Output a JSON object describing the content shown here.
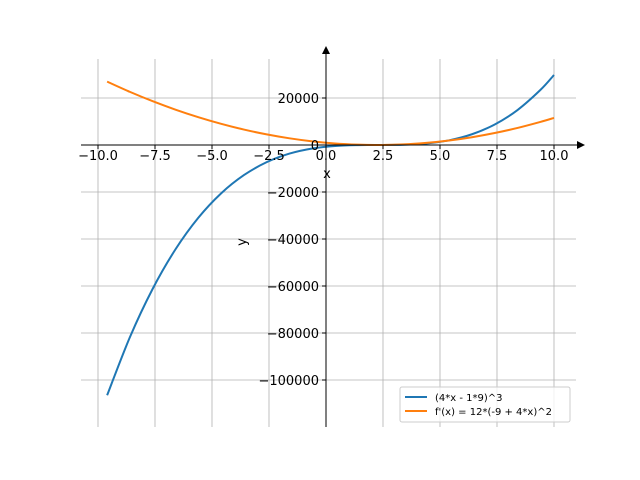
{
  "chart_data": {
    "type": "line",
    "title": "",
    "xlabel": "x",
    "ylabel": "y",
    "xlim": [
      -10.75,
      11
    ],
    "ylim": [
      -119000,
      36000
    ],
    "grid": true,
    "legend_position": "bottom-right",
    "x_ticks": [
      -10,
      -7.5,
      -5,
      -2.5,
      0,
      2.5,
      5,
      7.5,
      10
    ],
    "x_tick_labels": [
      "−10.0",
      "−7.5",
      "−5.0",
      "−2.5",
      "0.0",
      "2.5",
      "5.0",
      "7.5",
      "10.0"
    ],
    "y_ticks": [
      -100000,
      -80000,
      -60000,
      -40000,
      -20000,
      0,
      20000
    ],
    "y_tick_labels": [
      "−100000",
      "−80000",
      "−60000",
      "−40000",
      "−20000",
      "0",
      "20000"
    ],
    "x": [
      -9.6,
      -8.6,
      -7.6,
      -6.6,
      -5.6,
      -4.6,
      -3.6,
      -2.6,
      -1.6,
      -0.6,
      0.4,
      1.4,
      2.25,
      3.4,
      4.4,
      5.4,
      6.4,
      7.4,
      8.4,
      9.4,
      10
    ],
    "series": [
      {
        "name": "(4*x - 1*9)^3",
        "color": "#1f77b4",
        "values": [
          -106496,
          -81747,
          -61163,
          -44362,
          -30959,
          -20571,
          -12813,
          -7301,
          -3652,
          -1482,
          -405,
          -39,
          0,
          97,
          636,
          2000,
          4574,
          8742,
          14887,
          23394,
          29791
        ]
      },
      {
        "name": "f'(x) = 12*(-9 + 4*x)^2",
        "color": "#ff7f0e",
        "values": [
          26961,
          22603,
          18628,
          15038,
          11832,
          9009,
          6571,
          4516,
          2846,
          1560,
          657,
          139,
          0,
          254,
          888,
          1905,
          3307,
          5092,
          7262,
          9816,
          11532
        ]
      }
    ]
  }
}
